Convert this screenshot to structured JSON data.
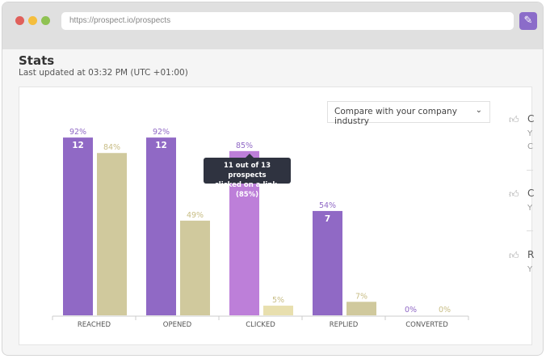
{
  "browser": {
    "url": "https://prospect.io/prospects",
    "extension_icon": "carrot-icon",
    "dot_colors": [
      "#e0605b",
      "#f5be3d",
      "#8fc252"
    ]
  },
  "page": {
    "title": "Stats",
    "subtitle": "Last updated at 03:32 PM (UTC +01:00)"
  },
  "compare_select": {
    "value": "Compare with your company industry"
  },
  "tooltip": {
    "line1": "11 out of 13 prospects",
    "line2": "clicked on a link. (85%)"
  },
  "right_panel": [
    {
      "initial": "C",
      "lines": [
        "Y",
        "C"
      ]
    },
    {
      "initial": "C",
      "lines": [
        "Y"
      ]
    },
    {
      "initial": "R",
      "lines": [
        "Y"
      ]
    }
  ],
  "chart_data": {
    "type": "bar",
    "categories": [
      "REACHED",
      "OPENED",
      "CLICKED",
      "REPLIED",
      "CONVERTED"
    ],
    "ylim": [
      0,
      100
    ],
    "series": [
      {
        "values": [
          92,
          92,
          85,
          54,
          0
        ],
        "counts": [
          "12",
          "12",
          "",
          "7",
          ""
        ],
        "labels": [
          "92%",
          "92%",
          "85%",
          "54%",
          "0%"
        ],
        "color": "#9069c5",
        "highlight_color": "#bd7fd9"
      },
      {
        "values": [
          84,
          49,
          5,
          7,
          0
        ],
        "labels": [
          "84%",
          "49%",
          "5%",
          "7%",
          "0%"
        ],
        "color": "#d0c99d",
        "highlight_color": "#e8dfae"
      }
    ],
    "highlighted_category": "CLICKED"
  }
}
